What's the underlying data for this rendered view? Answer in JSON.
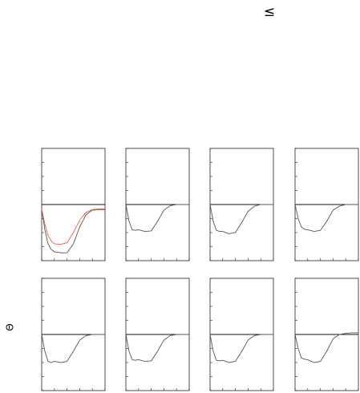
{
  "symbol": "≤",
  "axis_label": "Θ",
  "chart_data": [
    {
      "type": "line",
      "x": [
        0,
        0.5,
        1,
        1.5,
        2,
        3,
        4,
        5,
        6,
        7,
        8,
        9,
        10
      ],
      "xlim": [
        0,
        10
      ],
      "ylim": [
        -1,
        1
      ],
      "xticks": [
        0,
        2,
        4,
        6,
        8,
        10
      ],
      "yticks": [
        -1,
        -0.75,
        -0.5,
        -0.25,
        0,
        0.25,
        0.5,
        0.75,
        1
      ],
      "hlines": [
        0
      ],
      "series": [
        {
          "color": "#555555",
          "values": [
            -0.08,
            -0.45,
            -0.7,
            -0.8,
            -0.84,
            -0.86,
            -0.86,
            -0.7,
            -0.4,
            -0.18,
            -0.1,
            -0.09,
            -0.09
          ]
        },
        {
          "color": "#e0604a",
          "values": [
            -0.08,
            -0.35,
            -0.55,
            -0.65,
            -0.7,
            -0.71,
            -0.68,
            -0.5,
            -0.28,
            -0.14,
            -0.09,
            -0.08,
            -0.08
          ]
        }
      ]
    },
    {
      "type": "line",
      "x": [
        0,
        0.5,
        1,
        1.5,
        2,
        3,
        4,
        5,
        6,
        7,
        8,
        9,
        10
      ],
      "xlim": [
        0,
        10
      ],
      "ylim": [
        -1,
        1
      ],
      "xticks": [
        0,
        2,
        4,
        6,
        8,
        10
      ],
      "yticks": [
        -1,
        -0.75,
        -0.5,
        -0.25,
        0,
        0.25,
        0.5,
        0.75,
        1
      ],
      "hlines": [
        0
      ],
      "series": [
        {
          "color": "#555555",
          "values": [
            0,
            -0.3,
            -0.45,
            -0.46,
            -0.45,
            -0.48,
            -0.47,
            -0.3,
            -0.1,
            -0.02,
            0,
            0,
            0
          ]
        }
      ]
    },
    {
      "type": "line",
      "x": [
        0,
        0.5,
        1,
        1.5,
        2,
        3,
        4,
        5,
        6,
        7,
        8,
        9,
        10
      ],
      "xlim": [
        0,
        10
      ],
      "ylim": [
        -1,
        1
      ],
      "xticks": [
        0,
        2,
        4,
        6,
        8,
        10
      ],
      "yticks": [
        -1,
        -0.75,
        -0.5,
        -0.25,
        0,
        0.25,
        0.5,
        0.75,
        1
      ],
      "hlines": [
        0
      ],
      "series": [
        {
          "color": "#555555",
          "values": [
            0,
            -0.3,
            -0.46,
            -0.48,
            -0.48,
            -0.52,
            -0.5,
            -0.32,
            -0.12,
            -0.03,
            0,
            0,
            0
          ]
        }
      ]
    },
    {
      "type": "line",
      "x": [
        0,
        0.5,
        1,
        1.5,
        2,
        3,
        4,
        5,
        6,
        7,
        8,
        9,
        10
      ],
      "xlim": [
        0,
        10
      ],
      "ylim": [
        -1,
        1
      ],
      "xticks": [
        0,
        2,
        4,
        6,
        8,
        10
      ],
      "yticks": [
        -1,
        -0.75,
        -0.5,
        -0.25,
        0,
        0.25,
        0.5,
        0.75,
        1
      ],
      "hlines": [
        0
      ],
      "series": [
        {
          "color": "#555555",
          "values": [
            0,
            -0.25,
            -0.4,
            -0.44,
            -0.45,
            -0.48,
            -0.46,
            -0.3,
            -0.1,
            -0.03,
            0,
            0,
            0
          ]
        }
      ]
    },
    {
      "type": "line",
      "x": [
        0,
        0.5,
        1,
        1.5,
        2,
        3,
        4,
        5,
        6,
        7,
        8,
        9,
        10
      ],
      "xlim": [
        0,
        10
      ],
      "ylim": [
        -1,
        1
      ],
      "xticks": [
        0,
        2,
        4,
        6,
        8,
        10
      ],
      "yticks": [
        -1,
        -0.75,
        -0.5,
        -0.25,
        0,
        0.25,
        0.5,
        0.75,
        1
      ],
      "hlines": [
        0
      ],
      "series": [
        {
          "color": "#555555",
          "values": [
            0,
            -0.3,
            -0.48,
            -0.5,
            -0.48,
            -0.5,
            -0.48,
            -0.3,
            -0.1,
            -0.02,
            0,
            0,
            0
          ]
        }
      ]
    },
    {
      "type": "line",
      "x": [
        0,
        0.5,
        1,
        1.5,
        2,
        3,
        4,
        5,
        6,
        7,
        8,
        9,
        10
      ],
      "xlim": [
        0,
        10
      ],
      "ylim": [
        -1,
        1
      ],
      "xticks": [
        0,
        2,
        4,
        6,
        8,
        10
      ],
      "yticks": [
        -1,
        -0.75,
        -0.5,
        -0.25,
        0,
        0.25,
        0.5,
        0.75,
        1
      ],
      "hlines": [
        0
      ],
      "series": [
        {
          "color": "#555555",
          "values": [
            0,
            -0.3,
            -0.45,
            -0.46,
            -0.45,
            -0.48,
            -0.47,
            -0.3,
            -0.1,
            -0.02,
            0,
            0,
            0
          ]
        }
      ]
    },
    {
      "type": "line",
      "x": [
        0,
        0.5,
        1,
        1.5,
        2,
        3,
        4,
        5,
        6,
        7,
        8,
        9,
        10
      ],
      "xlim": [
        0,
        10
      ],
      "ylim": [
        -1,
        1
      ],
      "xticks": [
        0,
        2,
        4,
        6,
        8,
        10
      ],
      "yticks": [
        -1,
        -0.75,
        -0.5,
        -0.25,
        0,
        0.25,
        0.5,
        0.75,
        1
      ],
      "hlines": [
        0
      ],
      "series": [
        {
          "color": "#555555",
          "values": [
            0,
            -0.3,
            -0.46,
            -0.47,
            -0.46,
            -0.5,
            -0.48,
            -0.3,
            -0.1,
            -0.02,
            0,
            0,
            0
          ]
        }
      ]
    },
    {
      "type": "line",
      "x": [
        0,
        0.5,
        1,
        1.5,
        2,
        3,
        4,
        5,
        6,
        7,
        8,
        9,
        10
      ],
      "xlim": [
        0,
        10
      ],
      "ylim": [
        -1,
        1
      ],
      "xticks": [
        0,
        2,
        4,
        6,
        8,
        10
      ],
      "yticks": [
        -1,
        -0.75,
        -0.5,
        -0.25,
        0,
        0.25,
        0.5,
        0.75,
        1
      ],
      "hlines": [
        0
      ],
      "series": [
        {
          "color": "#555555",
          "values": [
            0,
            -0.25,
            -0.42,
            -0.44,
            -0.45,
            -0.5,
            -0.48,
            -0.3,
            -0.08,
            0,
            0.02,
            0.03,
            0.03
          ]
        }
      ]
    }
  ]
}
